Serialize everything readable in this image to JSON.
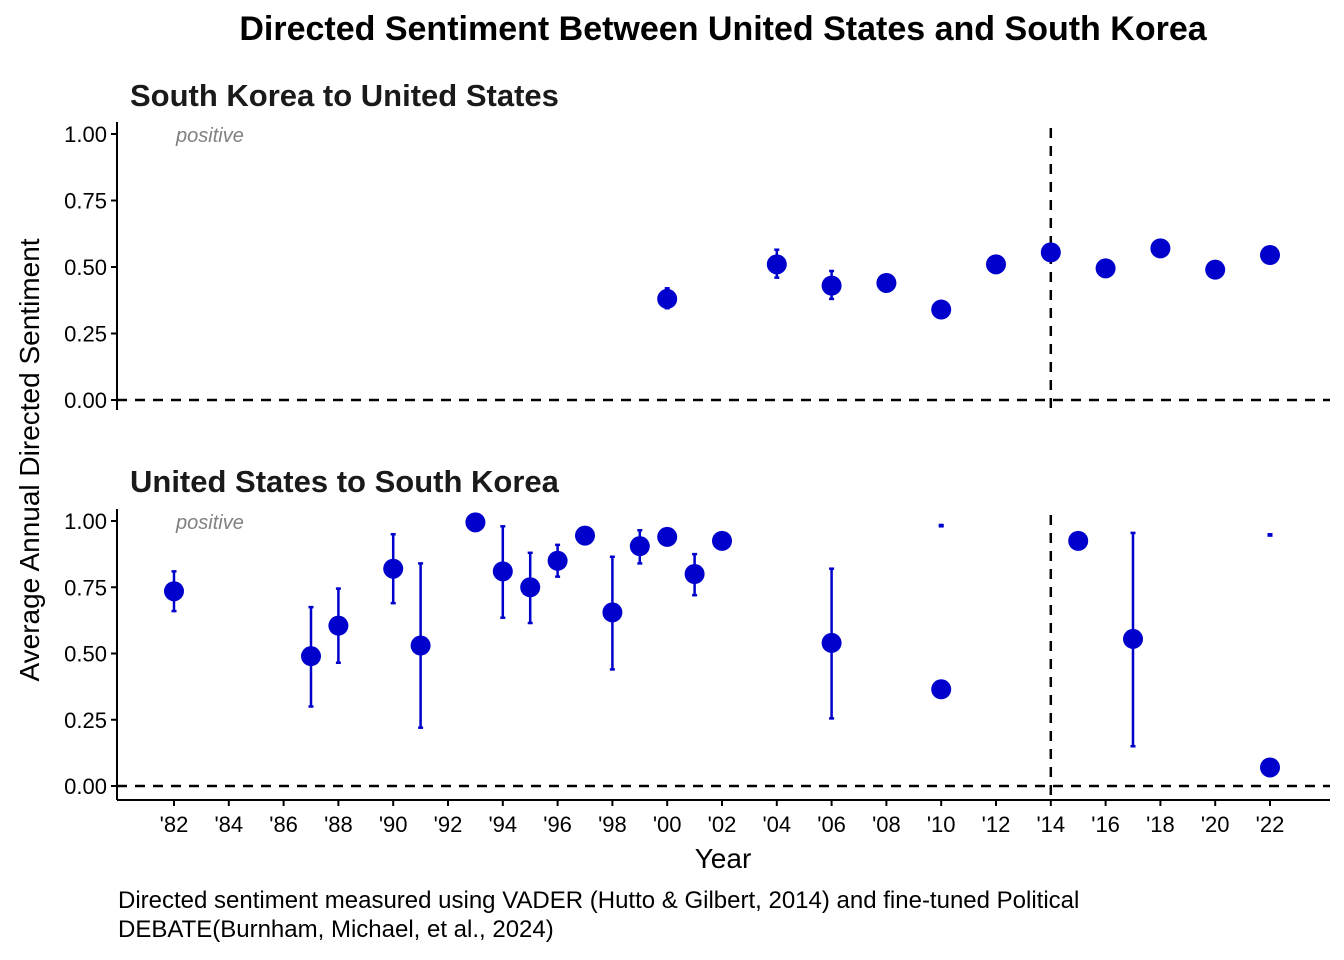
{
  "title": "Directed Sentiment Between United States and South Korea",
  "ylabel": "Average Annual Directed Sentiment",
  "xlabel": "Year",
  "caption": "Directed sentiment measured using VADER (Hutto & Gilbert, 2014) and fine-tuned Political DEBATE(Burnham, Michael, et al., 2024)",
  "colors": {
    "point": "#0000CD",
    "annotation": "#808080"
  },
  "chart_data": [
    {
      "type": "scatter",
      "title": "South Korea to United States",
      "annotation": "positive",
      "ylim": [
        0,
        1
      ],
      "yticks": [
        0,
        0.25,
        0.5,
        0.75,
        1
      ],
      "ytick_labels": [
        "0.00",
        "0.25",
        "0.50",
        "0.75",
        "1.00"
      ],
      "reference_lines": {
        "y": 0,
        "x": 2014
      },
      "points": [
        {
          "x": 2000,
          "y": 0.38,
          "lo": 0.345,
          "hi": 0.42
        },
        {
          "x": 2004,
          "y": 0.51,
          "lo": 0.46,
          "hi": 0.565
        },
        {
          "x": 2006,
          "y": 0.43,
          "lo": 0.38,
          "hi": 0.485
        },
        {
          "x": 2008,
          "y": 0.44
        },
        {
          "x": 2010,
          "y": 0.34
        },
        {
          "x": 2012,
          "y": 0.51
        },
        {
          "x": 2014,
          "y": 0.555
        },
        {
          "x": 2016,
          "y": 0.495
        },
        {
          "x": 2018,
          "y": 0.57
        },
        {
          "x": 2020,
          "y": 0.49,
          "lo": 0.475,
          "hi": 0.505
        },
        {
          "x": 2022,
          "y": 0.545
        }
      ]
    },
    {
      "type": "scatter",
      "title": "United States to South Korea",
      "annotation": "positive",
      "ylim": [
        0,
        1
      ],
      "yticks": [
        0,
        0.25,
        0.5,
        0.75,
        1
      ],
      "ytick_labels": [
        "0.00",
        "0.25",
        "0.50",
        "0.75",
        "1.00"
      ],
      "reference_lines": {
        "y": 0,
        "x": 2014
      },
      "points": [
        {
          "x": 1982,
          "y": 0.735,
          "lo": 0.66,
          "hi": 0.81
        },
        {
          "x": 1987,
          "y": 0.49,
          "lo": 0.3,
          "hi": 0.675
        },
        {
          "x": 1988,
          "y": 0.605,
          "lo": 0.465,
          "hi": 0.745
        },
        {
          "x": 1990,
          "y": 0.82,
          "lo": 0.69,
          "hi": 0.95
        },
        {
          "x": 1991,
          "y": 0.53,
          "lo": 0.22,
          "hi": 0.84
        },
        {
          "x": 1993,
          "y": 0.995
        },
        {
          "x": 1994,
          "y": 0.81,
          "lo": 0.635,
          "hi": 0.98
        },
        {
          "x": 1995,
          "y": 0.75,
          "lo": 0.615,
          "hi": 0.88
        },
        {
          "x": 1996,
          "y": 0.85,
          "lo": 0.79,
          "hi": 0.91
        },
        {
          "x": 1997,
          "y": 0.945
        },
        {
          "x": 1998,
          "y": 0.655,
          "lo": 0.44,
          "hi": 0.865
        },
        {
          "x": 1999,
          "y": 0.905,
          "lo": 0.84,
          "hi": 0.965
        },
        {
          "x": 2000,
          "y": 0.94
        },
        {
          "x": 2001,
          "y": 0.8,
          "lo": 0.72,
          "hi": 0.875
        },
        {
          "x": 2002,
          "y": 0.925,
          "lo": 0.91,
          "hi": 0.935
        },
        {
          "x": 2006,
          "y": 0.54,
          "lo": 0.255,
          "hi": 0.82
        },
        {
          "x": 2010,
          "y": 0.365,
          "lo": 0.98,
          "hi": 0.985
        },
        {
          "x": 2015,
          "y": 0.925
        },
        {
          "x": 2017,
          "y": 0.555,
          "lo": 0.15,
          "hi": 0.955
        },
        {
          "x": 2022,
          "y": 0.07,
          "lo": 0.945,
          "hi": 0.95
        }
      ]
    }
  ],
  "x_axis": {
    "range": [
      1980,
      2024
    ],
    "ticks": [
      1982,
      1984,
      1986,
      1988,
      1990,
      1992,
      1994,
      1996,
      1998,
      2000,
      2002,
      2004,
      2006,
      2008,
      2010,
      2012,
      2014,
      2016,
      2018,
      2020,
      2022
    ],
    "tick_labels": [
      "'82",
      "'84",
      "'86",
      "'88",
      "'90",
      "'92",
      "'94",
      "'96",
      "'98",
      "'00",
      "'02",
      "'04",
      "'06",
      "'08",
      "'10",
      "'12",
      "'14",
      "'16",
      "'18",
      "'20",
      "'22"
    ]
  }
}
